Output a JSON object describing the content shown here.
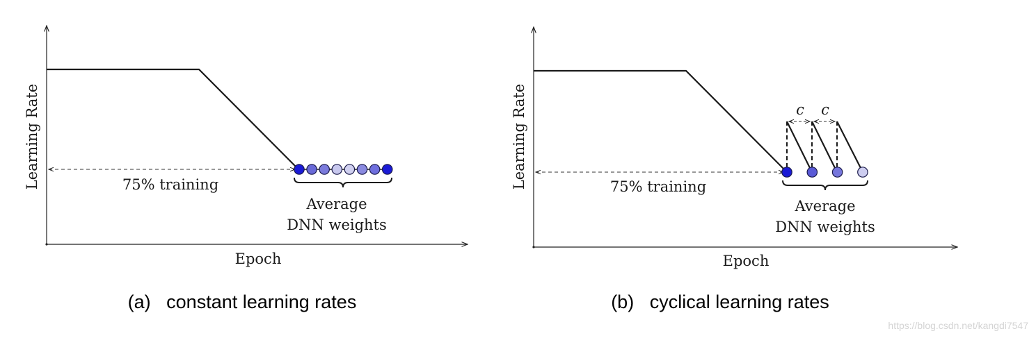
{
  "diagrams": [
    {
      "id": "a",
      "y_axis_label": "Learning Rate",
      "x_axis_label": "Epoch",
      "span_label": "75% training",
      "brace_label_line1": "Average",
      "brace_label_line2": "DNN weights",
      "caption": "(a)   constant learning rates",
      "dot_colors": [
        "#1a1ad6",
        "#6a6ad8",
        "#7b7bdc",
        "#c8c8ee",
        "#d0d0f0",
        "#8a8ae0",
        "#6f6fde",
        "#1a1ad6"
      ]
    },
    {
      "id": "b",
      "y_axis_label": "Learning Rate",
      "x_axis_label": "Epoch",
      "span_label": "75% training",
      "brace_label_line1": "Average",
      "brace_label_line2": "DNN weights",
      "cycle_label_1": "c",
      "cycle_label_2": "c",
      "caption": "(b)   cyclical learning rates",
      "dot_colors": [
        "#1a1ad6",
        "#5a5ad6",
        "#7676dc",
        "#cdcdf0"
      ]
    }
  ],
  "watermark": "https://blog.csdn.net/kangdi7547"
}
